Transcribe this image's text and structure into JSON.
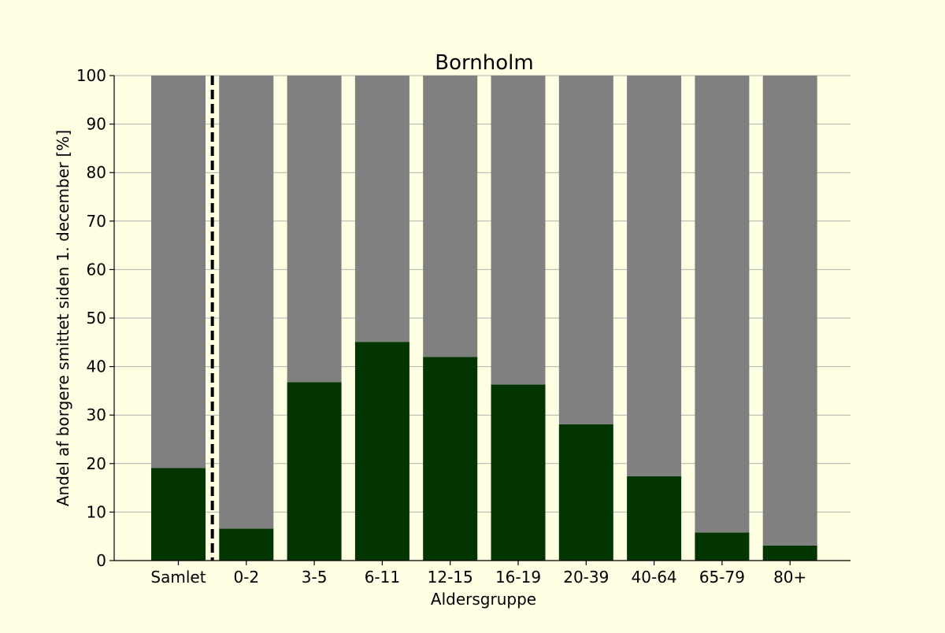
{
  "colors": {
    "background": "#ffffe3",
    "infected": "#023501",
    "remaining": "#808080",
    "grid": "#b0b0b0",
    "divider": "#000000"
  },
  "chart_data": {
    "type": "bar",
    "stacked": true,
    "title": "Bornholm",
    "xlabel": "Aldersgruppe",
    "ylabel": "Andel af borgere smittet siden 1. december [%]",
    "categories": [
      "Samlet",
      "0-2",
      "3-5",
      "6-11",
      "12-15",
      "16-19",
      "20-39",
      "40-64",
      "65-79",
      "80+"
    ],
    "series": [
      {
        "values": [
          19.1,
          6.6,
          36.8,
          45.1,
          42.0,
          36.3,
          28.1,
          17.4,
          5.8,
          3.1
        ]
      },
      {
        "values": [
          80.9,
          93.4,
          63.2,
          54.9,
          58.0,
          63.7,
          71.9,
          82.6,
          94.2,
          96.9
        ]
      }
    ],
    "ylim": [
      0,
      100
    ],
    "yticks": [
      0,
      10,
      20,
      30,
      40,
      50,
      60,
      70,
      80,
      90,
      100
    ],
    "grid": "horizontal",
    "divider_after_category": "Samlet",
    "divider_style": "dashed"
  }
}
